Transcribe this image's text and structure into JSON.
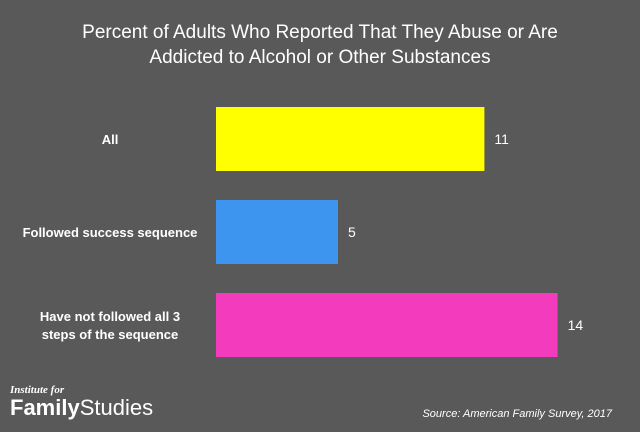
{
  "chart_data": {
    "type": "bar",
    "orientation": "horizontal",
    "title_lines": [
      "Percent of Adults Who Reported That They Abuse or Are",
      "Addicted to Alcohol or Other Substances"
    ],
    "categories": [
      [
        "All"
      ],
      [
        "Followed success sequence"
      ],
      [
        "Have not followed all 3",
        "steps of the sequence"
      ]
    ],
    "values": [
      11,
      5,
      14
    ],
    "colors": [
      "#ffff00",
      "#3d95f0",
      "#f23cbd"
    ],
    "xlim": [
      0,
      14
    ],
    "grid": false,
    "legend": "none"
  },
  "logo": {
    "small": "Institute for",
    "big_bold": "Family",
    "big_rest": "Studies"
  },
  "source": "Source: American Family Survey, 2017"
}
